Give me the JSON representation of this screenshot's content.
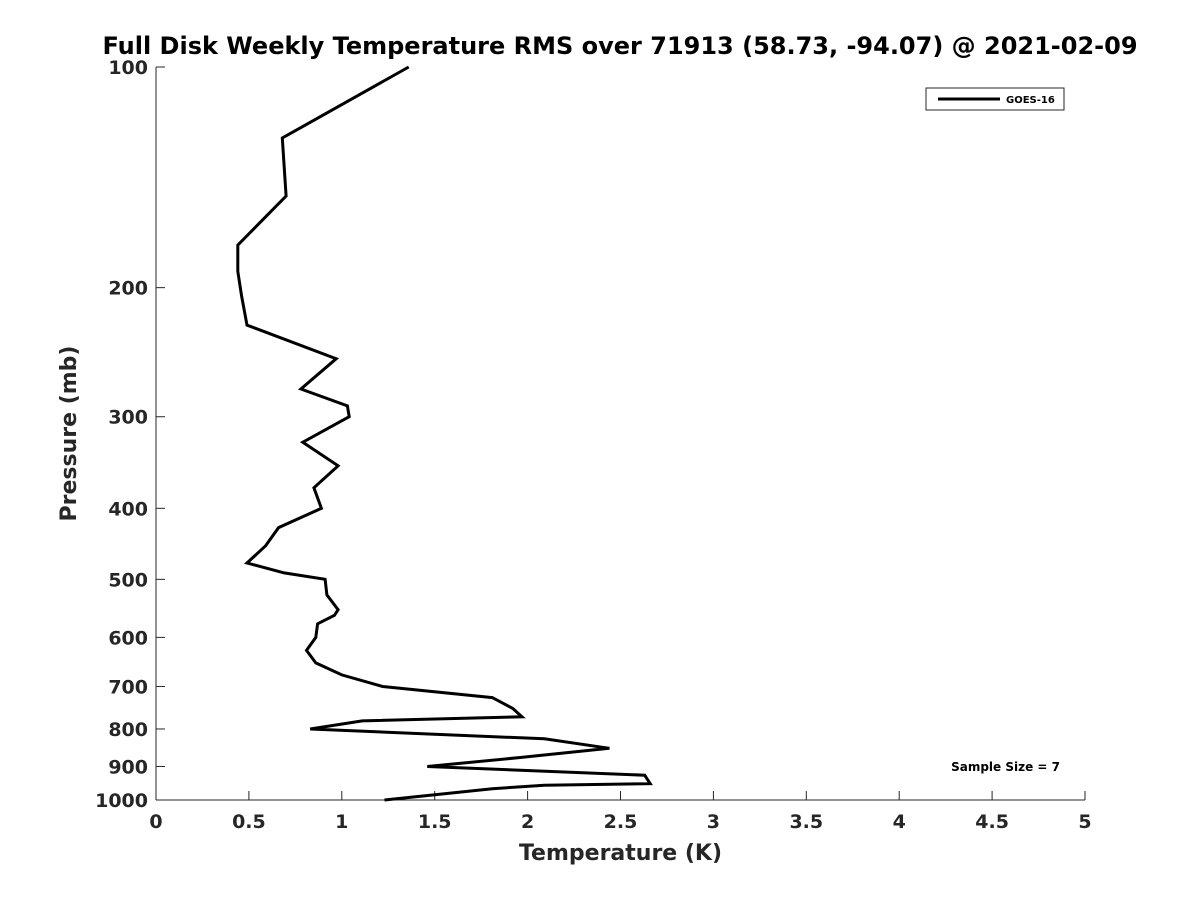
{
  "chart_data": {
    "type": "line",
    "title": "Full Disk Weekly Temperature RMS over 71913 (58.73, -94.07) @ 2021-02-09",
    "xlabel": "Temperature (K)",
    "ylabel": "Pressure (mb)",
    "xlim": [
      0,
      5
    ],
    "ylim": [
      1000,
      100
    ],
    "y_scale": "log",
    "y_reversed": true,
    "grid": false,
    "xticks": [
      0,
      0.5,
      1,
      1.5,
      2,
      2.5,
      3,
      3.5,
      4,
      4.5,
      5
    ],
    "xtick_labels": [
      "0",
      "0.5",
      "1",
      "1.5",
      "2",
      "2.5",
      "3",
      "3.5",
      "4",
      "4.5",
      "5"
    ],
    "yticks": [
      100,
      200,
      300,
      400,
      500,
      600,
      700,
      800,
      900,
      1000
    ],
    "ytick_labels": [
      "100",
      "200",
      "300",
      "400",
      "500",
      "600",
      "700",
      "800",
      "900",
      "1000"
    ],
    "legend": {
      "placement": "top-right",
      "entries": [
        "GOES-16"
      ]
    },
    "annotation": "Sample Size = 7",
    "series": [
      {
        "name": "GOES-16",
        "color": "#000000",
        "points": [
          [
            1.36,
            100
          ],
          [
            0.68,
            125
          ],
          [
            0.7,
            150
          ],
          [
            0.44,
            175
          ],
          [
            0.44,
            190
          ],
          [
            0.46,
            205
          ],
          [
            0.49,
            225
          ],
          [
            0.97,
            250
          ],
          [
            0.78,
            275
          ],
          [
            1.03,
            290
          ],
          [
            1.04,
            300
          ],
          [
            0.79,
            325
          ],
          [
            0.98,
            350
          ],
          [
            0.85,
            375
          ],
          [
            0.89,
            400
          ],
          [
            0.66,
            425
          ],
          [
            0.59,
            450
          ],
          [
            0.49,
            475
          ],
          [
            0.69,
            490
          ],
          [
            0.91,
            500
          ],
          [
            0.92,
            525
          ],
          [
            0.98,
            550
          ],
          [
            0.96,
            560
          ],
          [
            0.87,
            575
          ],
          [
            0.86,
            600
          ],
          [
            0.81,
            625
          ],
          [
            0.86,
            650
          ],
          [
            1.0,
            675
          ],
          [
            1.22,
            700
          ],
          [
            1.81,
            725
          ],
          [
            1.92,
            750
          ],
          [
            1.97,
            770
          ],
          [
            1.11,
            780
          ],
          [
            0.83,
            800
          ],
          [
            2.09,
            825
          ],
          [
            2.44,
            850
          ],
          [
            1.96,
            875
          ],
          [
            1.46,
            900
          ],
          [
            2.63,
            925
          ],
          [
            2.66,
            950
          ],
          [
            2.09,
            955
          ],
          [
            1.81,
            965
          ],
          [
            1.23,
            1000
          ]
        ]
      }
    ]
  }
}
